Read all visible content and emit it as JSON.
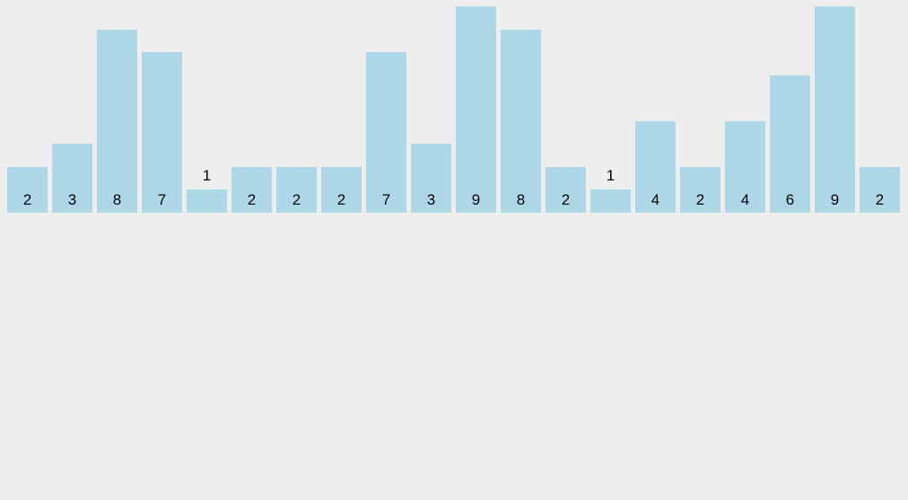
{
  "background_color": "#eeeeee",
  "chart_data": {
    "type": "bar",
    "values": [
      2,
      3,
      8,
      7,
      1,
      2,
      2,
      2,
      7,
      3,
      9,
      8,
      2,
      1,
      4,
      2,
      4,
      6,
      9,
      2
    ],
    "data_labels": [
      "2",
      "3",
      "8",
      "7",
      "1",
      "2",
      "2",
      "2",
      "7",
      "3",
      "9",
      "8",
      "2",
      "1",
      "4",
      "2",
      "4",
      "6",
      "9",
      "2"
    ],
    "title": "",
    "xlabel": "",
    "ylabel": "",
    "ylim": [
      0,
      9
    ],
    "grid": false,
    "legend": false,
    "axes_visible": false,
    "bar_count": 20,
    "bar_color": "#aed8e8",
    "label_color": "#000000",
    "label_placement_rule": "inside-bottom of bar; above bar when bar is too short (value 1)"
  }
}
